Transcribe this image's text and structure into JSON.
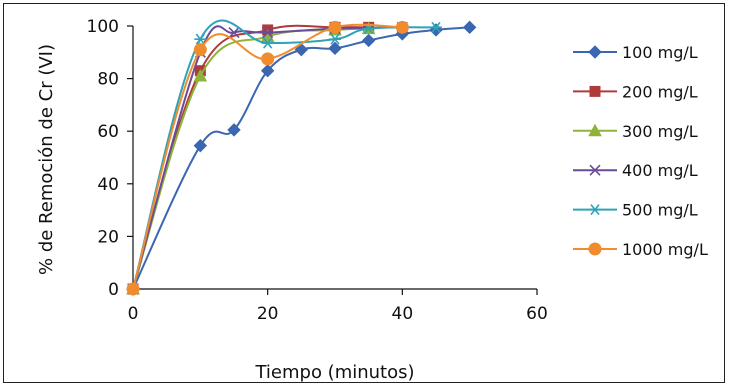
{
  "chart_data": {
    "type": "line",
    "title": "",
    "xlabel": "Tiempo (minutos)",
    "ylabel": "% de Remoción de Cr (VI)",
    "xlim": [
      0,
      60
    ],
    "ylim": [
      0,
      100
    ],
    "x_ticks": [
      0,
      20,
      40,
      60
    ],
    "y_ticks": [
      0,
      20,
      40,
      60,
      80,
      100
    ],
    "grid": false,
    "legend_position": "right",
    "series": [
      {
        "name": "100 mg/L",
        "color": "#3b66b0",
        "marker": "diamond",
        "x": [
          0,
          10,
          15,
          20,
          25,
          30,
          35,
          40,
          45,
          50
        ],
        "y": [
          0,
          54.5,
          60.5,
          83,
          91,
          91.5,
          94.5,
          97,
          98.5,
          99.5
        ]
      },
      {
        "name": "200 mg/L",
        "color": "#b03a3a",
        "marker": "square",
        "x": [
          0,
          10,
          20,
          30,
          35
        ],
        "y": [
          0,
          83,
          98.5,
          99.5,
          99.5
        ]
      },
      {
        "name": "300 mg/L",
        "color": "#8fb33a",
        "marker": "triangle",
        "x": [
          0,
          10,
          20,
          30,
          35
        ],
        "y": [
          0,
          81,
          96,
          98.5,
          99
        ]
      },
      {
        "name": "400 mg/L",
        "color": "#6a4b96",
        "marker": "x",
        "x": [
          0,
          10,
          15,
          20,
          30,
          40
        ],
        "y": [
          0,
          90,
          97.5,
          97.5,
          99,
          99.5
        ]
      },
      {
        "name": "500 mg/L",
        "color": "#2ea3b8",
        "marker": "asterisk",
        "x": [
          0,
          10,
          20,
          30,
          35,
          45
        ],
        "y": [
          0,
          95,
          93.5,
          95,
          99,
          99.5
        ]
      },
      {
        "name": "1000 mg/L",
        "color": "#f08c2e",
        "marker": "circle",
        "x": [
          0,
          10,
          20,
          30,
          40
        ],
        "y": [
          0,
          91,
          87.5,
          99.5,
          99.5
        ]
      }
    ]
  }
}
